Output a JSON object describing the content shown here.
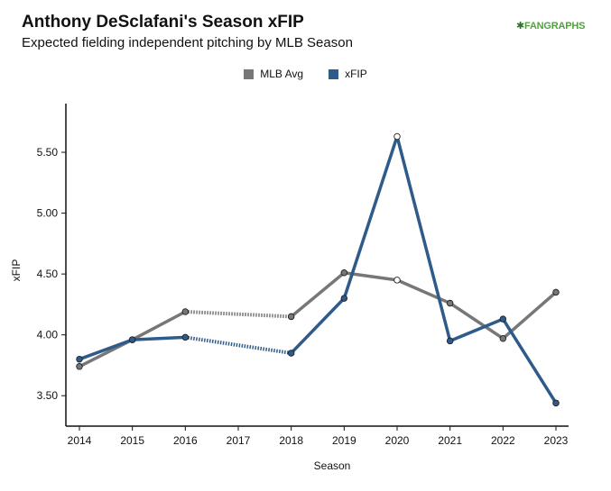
{
  "header": {
    "title": "Anthony DeSclafani's Season xFIP",
    "subtitle": "Expected fielding independent pitching by MLB Season",
    "brand": "FANGRAPHS"
  },
  "colors": {
    "mlb_avg": "#777777",
    "xfip": "#2e5b8a",
    "text": "#111111"
  },
  "chart_data": {
    "type": "line",
    "title": "Anthony DeSclafani's Season xFIP",
    "subtitle": "Expected fielding independent pitching by MLB Season",
    "xlabel": "Season",
    "ylabel": "xFIP",
    "categories": [
      "2014",
      "2015",
      "2016",
      "2017",
      "2018",
      "2019",
      "2020",
      "2021",
      "2022",
      "2023"
    ],
    "yticks": [
      "3.50",
      "4.00",
      "4.50",
      "5.00",
      "5.50"
    ],
    "ylim": [
      3.25,
      5.9
    ],
    "legend_position": "top-center",
    "grid": false,
    "series": [
      {
        "name": "MLB Avg",
        "color_key": "mlb_avg",
        "values": [
          3.74,
          3.96,
          4.19,
          null,
          4.15,
          4.51,
          4.45,
          4.26,
          3.97,
          4.35
        ]
      },
      {
        "name": "xFIP",
        "color_key": "xfip",
        "values": [
          3.8,
          3.96,
          3.98,
          null,
          3.85,
          4.3,
          5.63,
          3.95,
          4.13,
          3.44
        ]
      }
    ]
  }
}
